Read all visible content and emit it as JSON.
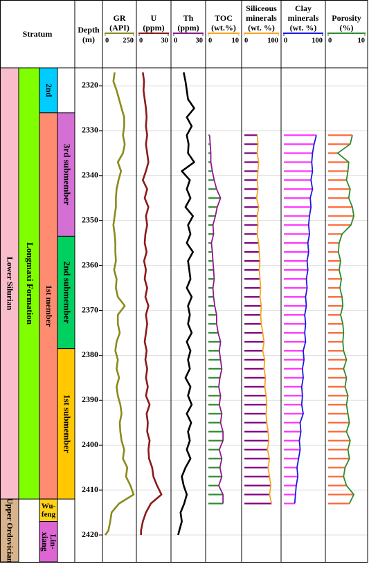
{
  "header": {
    "stratum": "Stratum",
    "depth": [
      "Depth",
      "(m)"
    ]
  },
  "depth_axis": {
    "ylim": [
      2316,
      2426
    ],
    "yticks": [
      2320,
      2330,
      2340,
      2350,
      2360,
      2370,
      2380,
      2390,
      2400,
      2410,
      2420
    ],
    "grid": true
  },
  "strata": [
    {
      "label": [
        "Lower Silurian"
      ],
      "column": 0,
      "top": 2316,
      "bottom": 2412,
      "color": "#f9bccb",
      "vertical": true
    },
    {
      "label": [
        "Upper Ordovician"
      ],
      "column": 0,
      "top": 2412,
      "bottom": 2426,
      "color": "#d9b38c",
      "vertical": true
    },
    {
      "label": [
        "Longmaxi Formation"
      ],
      "column": 1,
      "top": 2316,
      "bottom": 2412,
      "color": "#80ff00",
      "vertical": true
    },
    {
      "label": [
        "2nd"
      ],
      "column": 2,
      "top": 2316,
      "bottom": 2326,
      "color": "#00ccff",
      "vertical": true
    },
    {
      "label": [
        "1st member"
      ],
      "column": 2,
      "top": 2326,
      "bottom": 2412,
      "color": "#ff8c70",
      "vertical": true
    },
    {
      "label": [
        "Wu-",
        "feng"
      ],
      "column": 2,
      "top": 2412,
      "bottom": 2417,
      "color": "#ffd21a",
      "vertical": false
    },
    {
      "label": [
        "Lin-",
        "xiang"
      ],
      "column": 2,
      "top": 2417,
      "bottom": 2426,
      "color": "#dd66d4",
      "vertical": true
    },
    {
      "label": [
        "3rd submember"
      ],
      "column": 3,
      "top": 2326,
      "bottom": 2353.5,
      "color": "#d46fd4",
      "vertical": true
    },
    {
      "label": [
        "2nd submember"
      ],
      "column": 3,
      "top": 2353.5,
      "bottom": 2378.5,
      "color": "#00d060",
      "vertical": true
    },
    {
      "label": [
        "1st submember"
      ],
      "column": 3,
      "top": 2378.5,
      "bottom": 2412,
      "color": "#ffc800",
      "vertical": true
    }
  ],
  "tracks": [
    {
      "label": [
        "GR",
        "(API)"
      ],
      "header_color": "#8b8a1c",
      "color": "#8b8a1c",
      "style": "line",
      "xlim": [
        0,
        250
      ],
      "xticks": [
        0,
        250
      ],
      "depths": [
        2317,
        2319,
        2321,
        2323,
        2325,
        2327,
        2329,
        2331,
        2333,
        2335,
        2337,
        2339,
        2341,
        2343,
        2345,
        2347,
        2349,
        2351,
        2353,
        2355,
        2357,
        2359,
        2361,
        2363,
        2365,
        2367,
        2369,
        2371,
        2373,
        2375,
        2377,
        2379,
        2381,
        2383,
        2385,
        2387,
        2389,
        2391,
        2393,
        2395,
        2397,
        2399,
        2401,
        2403,
        2405,
        2407,
        2409,
        2411,
        2413,
        2415,
        2417,
        2419,
        2420
      ],
      "values": [
        83,
        72,
        100,
        122,
        144,
        167,
        167,
        156,
        172,
        156,
        111,
        139,
        117,
        100,
        94,
        94,
        83,
        72,
        83,
        89,
        89,
        94,
        78,
        100,
        94,
        111,
        172,
        111,
        111,
        128,
        100,
        89,
        111,
        100,
        122,
        100,
        111,
        133,
        144,
        128,
        133,
        144,
        167,
        156,
        194,
        183,
        222,
        250,
        122,
        56,
        44,
        28,
        0
      ]
    },
    {
      "label": [
        "U",
        "(ppm)"
      ],
      "header_color": "#8b1a1a",
      "color": "#8b1a1a",
      "style": "line",
      "xlim": [
        0,
        30
      ],
      "xticks": [
        0,
        30
      ],
      "depths": [
        2317,
        2319,
        2321,
        2323,
        2325,
        2327,
        2329,
        2331,
        2333,
        2335,
        2337,
        2339,
        2341,
        2343,
        2345,
        2347,
        2349,
        2351,
        2353,
        2355,
        2357,
        2359,
        2361,
        2363,
        2365,
        2367,
        2369,
        2371,
        2373,
        2375,
        2377,
        2379,
        2381,
        2383,
        2385,
        2387,
        2389,
        2391,
        2393,
        2395,
        2397,
        2399,
        2401,
        2403,
        2405,
        2407,
        2409,
        2411,
        2413,
        2415,
        2417,
        2419,
        2420
      ],
      "values": [
        3.8,
        5.1,
        4.5,
        5.7,
        7.0,
        7.7,
        7.0,
        8.3,
        7.0,
        8.3,
        9.6,
        7.0,
        3.8,
        8.3,
        5.7,
        9.6,
        7.0,
        8.3,
        6.4,
        5.7,
        7.7,
        5.1,
        7.0,
        5.7,
        8.3,
        6.4,
        9.6,
        7.0,
        8.3,
        7.0,
        5.7,
        7.7,
        6.4,
        8.3,
        7.0,
        8.9,
        7.0,
        10.8,
        7.7,
        8.9,
        8.3,
        10.8,
        9.6,
        10.2,
        13.4,
        14.7,
        18.5,
        23.0,
        12.1,
        7.0,
        3.8,
        1.9,
        1.9
      ]
    },
    {
      "label": [
        "Th",
        "(ppm)"
      ],
      "header_color": "#8b1a8b",
      "color": "#000000",
      "style": "line",
      "xlim": [
        0,
        30
      ],
      "xticks": [
        0,
        30
      ],
      "depths": [
        2317,
        2319,
        2321,
        2323,
        2325,
        2327,
        2329,
        2331,
        2333,
        2335,
        2337,
        2339,
        2341,
        2343,
        2345,
        2347,
        2349,
        2351,
        2353,
        2355,
        2357,
        2359,
        2361,
        2363,
        2365,
        2367,
        2369,
        2371,
        2373,
        2375,
        2377,
        2379,
        2381,
        2383,
        2385,
        2387,
        2389,
        2391,
        2393,
        2395,
        2397,
        2399,
        2401,
        2403,
        2405,
        2407,
        2409,
        2411,
        2413,
        2415,
        2417,
        2419,
        2420
      ],
      "values": [
        10.2,
        12.1,
        13.4,
        14.7,
        21.1,
        13.4,
        18.5,
        13.4,
        15.3,
        14.7,
        21.1,
        8.3,
        16.6,
        13.4,
        17.2,
        12.1,
        19.8,
        14.7,
        17.2,
        13.4,
        19.8,
        14.7,
        16.0,
        17.2,
        13.4,
        18.5,
        14.7,
        16.6,
        14.7,
        18.5,
        13.4,
        17.2,
        14.7,
        16.6,
        12.1,
        17.2,
        14.7,
        18.5,
        13.4,
        17.9,
        14.7,
        16.6,
        13.4,
        17.2,
        12.1,
        8.3,
        10.2,
        13.4,
        10.8,
        7.0,
        8.3,
        5.7,
        4.5
      ]
    },
    {
      "label": [
        "TOC",
        "(wt.%)"
      ],
      "header_color": "#f5a623",
      "color": "#8b1a8b",
      "bar_color": "#2e8b2e",
      "style": "bars",
      "xlim": [
        0,
        10
      ],
      "xticks": [
        0,
        10
      ],
      "depths": [
        2331,
        2333,
        2335,
        2337,
        2339,
        2341,
        2343,
        2345,
        2347,
        2349,
        2351,
        2353,
        2355,
        2357,
        2359,
        2361,
        2363,
        2365,
        2367,
        2369,
        2371,
        2373,
        2375,
        2377,
        2379,
        2381,
        2383,
        2385,
        2387,
        2389,
        2391,
        2393,
        2395,
        2397,
        2399,
        2401,
        2403,
        2405,
        2407,
        2409,
        2411,
        2413
      ],
      "values": [
        0.4,
        0.6,
        0.8,
        0.8,
        1.3,
        1.9,
        2.7,
        4.0,
        2.9,
        2.3,
        1.5,
        1.7,
        1.0,
        1.3,
        1.5,
        1.7,
        1.9,
        1.5,
        1.7,
        2.1,
        2.7,
        2.7,
        3.2,
        4.0,
        3.6,
        4.0,
        4.4,
        3.8,
        3.4,
        4.0,
        3.6,
        4.4,
        4.0,
        4.8,
        4.8,
        3.6,
        4.4,
        3.8,
        4.4,
        3.4,
        4.8,
        4.8
      ]
    },
    {
      "label": [
        "Siliceous",
        "minerals",
        "(wt. %)"
      ],
      "header_color": "#f5a623",
      "color": "#f5a623",
      "bar_color": "#800080",
      "style": "bars",
      "xlim": [
        0,
        100
      ],
      "xticks": [
        0,
        100
      ],
      "depths": [
        2331,
        2333,
        2335,
        2337,
        2339,
        2341,
        2343,
        2345,
        2347,
        2349,
        2351,
        2353,
        2355,
        2357,
        2359,
        2361,
        2363,
        2365,
        2367,
        2369,
        2371,
        2373,
        2375,
        2377,
        2379,
        2381,
        2383,
        2385,
        2387,
        2389,
        2391,
        2393,
        2395,
        2397,
        2399,
        2401,
        2403,
        2405,
        2407,
        2409,
        2411,
        2413
      ],
      "values": [
        38,
        40,
        38,
        42,
        40,
        38,
        40,
        36,
        42,
        38,
        40,
        38,
        42,
        44,
        46,
        44,
        46,
        48,
        46,
        50,
        48,
        50,
        54,
        58,
        54,
        60,
        58,
        62,
        60,
        64,
        66,
        64,
        66,
        70,
        72,
        68,
        74,
        70,
        74,
        78,
        74,
        80
      ]
    },
    {
      "label": [
        "Clay",
        "minerals",
        "(wt. %)"
      ],
      "header_color": "#1a1ae0",
      "color": "#1a1ae0",
      "bar_color": "#ff33ff",
      "style": "bars",
      "xlim": [
        0,
        100
      ],
      "xticks": [
        0,
        100
      ],
      "depths": [
        2331,
        2333,
        2335,
        2337,
        2339,
        2341,
        2343,
        2345,
        2347,
        2349,
        2351,
        2353,
        2355,
        2357,
        2359,
        2361,
        2363,
        2365,
        2367,
        2369,
        2371,
        2373,
        2375,
        2377,
        2379,
        2381,
        2383,
        2385,
        2387,
        2389,
        2391,
        2393,
        2395,
        2397,
        2399,
        2401,
        2403,
        2405,
        2407,
        2409,
        2411,
        2413
      ],
      "values": [
        84,
        78,
        74,
        72,
        74,
        70,
        74,
        68,
        70,
        66,
        64,
        66,
        62,
        64,
        60,
        62,
        58,
        60,
        56,
        58,
        54,
        56,
        54,
        56,
        50,
        52,
        48,
        50,
        46,
        48,
        46,
        50,
        42,
        44,
        40,
        42,
        38,
        34,
        36,
        32,
        30,
        28
      ]
    },
    {
      "label": [
        "Porosity",
        "(%)"
      ],
      "header_color": "#2e8b2e",
      "color": "#2e8b2e",
      "bar_color": "#ff6633",
      "style": "bars",
      "xlim": [
        0,
        10
      ],
      "xticks": [
        0,
        10
      ],
      "depths": [
        2331,
        2333,
        2335,
        2337,
        2339,
        2341,
        2343,
        2345,
        2347,
        2349,
        2351,
        2353,
        2355,
        2357,
        2359,
        2361,
        2363,
        2365,
        2367,
        2369,
        2371,
        2373,
        2375,
        2377,
        2379,
        2381,
        2383,
        2385,
        2387,
        2389,
        2391,
        2393,
        2395,
        2397,
        2399,
        2401,
        2403,
        2405,
        2407,
        2409,
        2411,
        2413
      ],
      "values": [
        6.6,
        6.0,
        2.6,
        5.6,
        5.4,
        5.0,
        6.0,
        5.6,
        6.6,
        7.0,
        6.2,
        3.8,
        3.0,
        2.8,
        3.4,
        3.0,
        3.6,
        3.2,
        3.8,
        4.0,
        3.4,
        4.0,
        4.2,
        4.0,
        4.2,
        5.0,
        4.2,
        5.0,
        4.6,
        5.4,
        5.0,
        5.4,
        5.8,
        5.0,
        6.0,
        5.4,
        5.8,
        4.6,
        4.2,
        5.0,
        7.0,
        5.8
      ]
    }
  ]
}
